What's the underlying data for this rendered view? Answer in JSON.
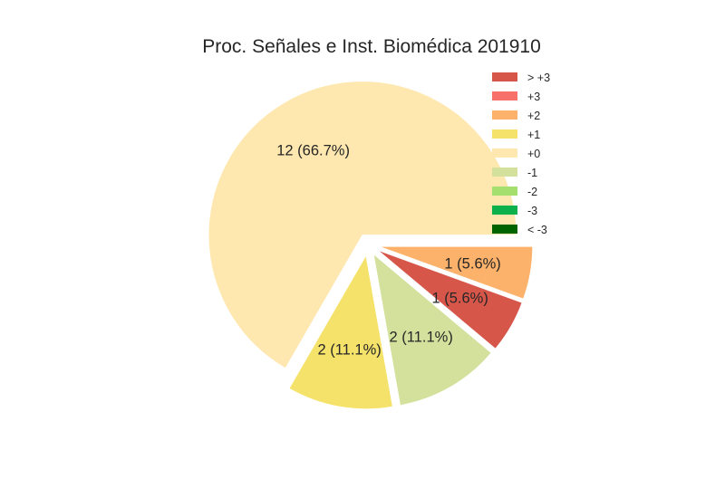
{
  "chart_data": {
    "type": "pie",
    "title": "Proc. Señales e Inst. Biomédica 201910",
    "categories": [
      "> +3",
      "+3",
      "+2",
      "+1",
      "+0",
      "-1",
      "-2",
      "-3",
      "< -3"
    ],
    "values": [
      1,
      0,
      1,
      2,
      12,
      2,
      0,
      0,
      0
    ],
    "colors": [
      "#d7564a",
      "#f8706a",
      "#fdb26b",
      "#f5e26b",
      "#fee8b0",
      "#d3e19c",
      "#a5df6e",
      "#0db14b",
      "#006400"
    ],
    "slice_labels": {
      "> +3": "1 (5.6%)",
      "+2": "1 (5.6%)",
      "+1": "2 (11.1%)",
      "+0": "12 (66.7%)",
      "-1": "2 (11.1%)"
    },
    "slices_exploded": true,
    "legend_position": "top-right",
    "xlabel": "",
    "ylabel": ""
  }
}
